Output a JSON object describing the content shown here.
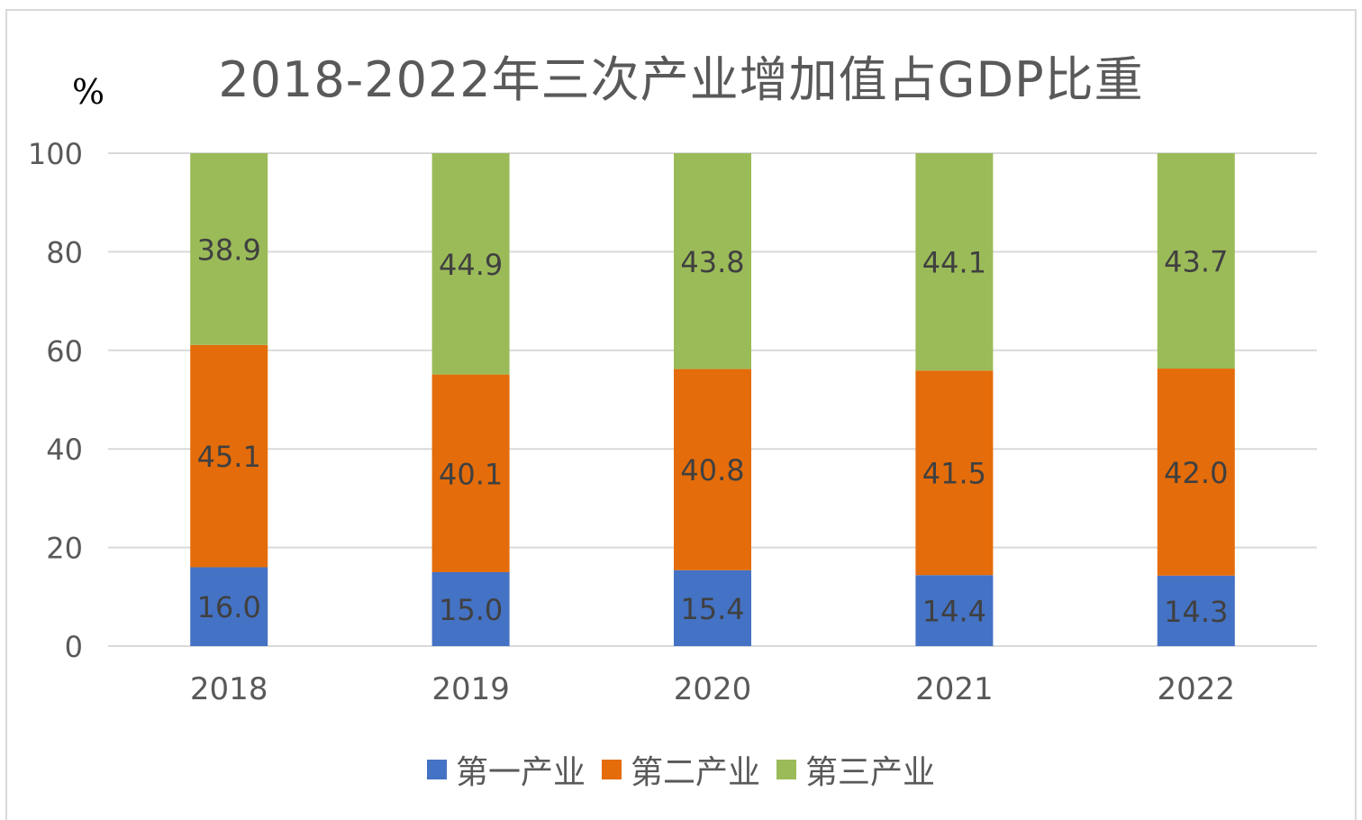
{
  "chart_data": {
    "type": "bar",
    "stacked": true,
    "title": "2018-2022年三次产业增加值占GDP比重",
    "ylabel": "%",
    "xlabel": "",
    "ylim": [
      0,
      100
    ],
    "yticks": [
      0,
      20,
      40,
      60,
      80,
      100
    ],
    "grid": true,
    "legend_position": "bottom",
    "categories": [
      "2018",
      "2019",
      "2020",
      "2021",
      "2022"
    ],
    "series": [
      {
        "name": "第一产业",
        "color": "#4472c4",
        "values": [
          16.0,
          15.0,
          15.4,
          14.4,
          14.3
        ],
        "labels": [
          "16.0",
          "15.0",
          "15.4",
          "14.4",
          "14.3"
        ]
      },
      {
        "name": "第二产业",
        "color": "#e46c0a",
        "values": [
          45.1,
          40.1,
          40.8,
          41.5,
          42.0
        ],
        "labels": [
          "45.1",
          "40.1",
          "40.8",
          "41.5",
          "42.0"
        ]
      },
      {
        "name": "第三产业",
        "color": "#9bbb59",
        "values": [
          38.9,
          44.9,
          43.8,
          44.1,
          43.7
        ],
        "labels": [
          "38.9",
          "44.9",
          "43.8",
          "44.1",
          "43.7"
        ]
      }
    ]
  }
}
